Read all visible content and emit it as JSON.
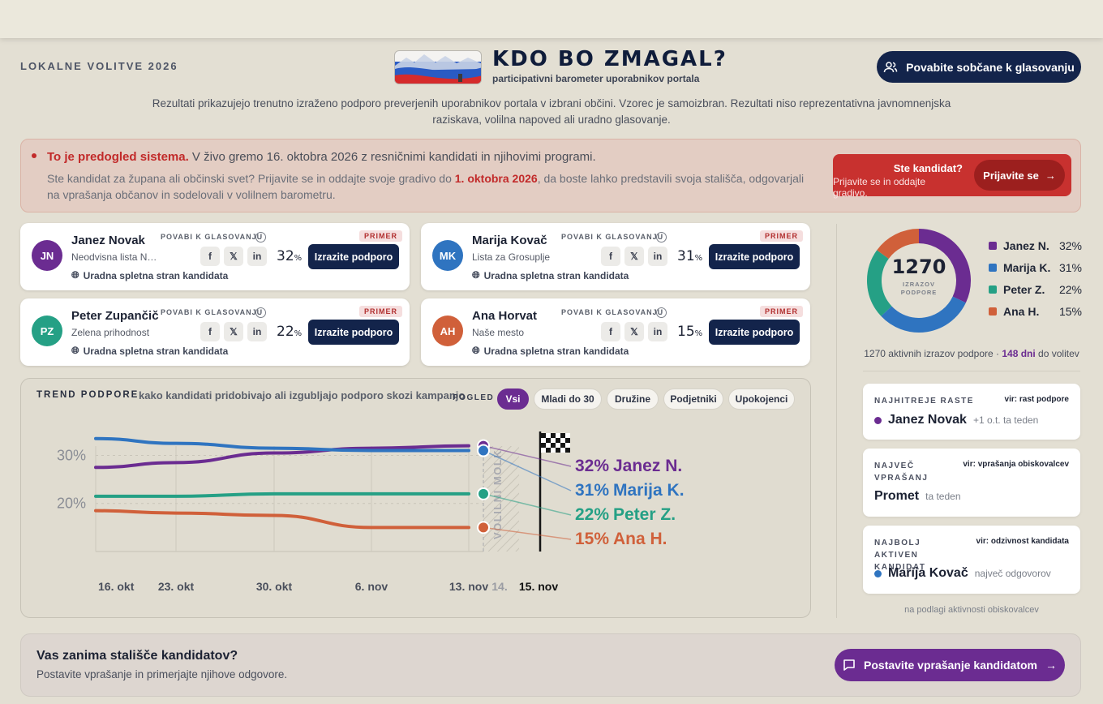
{
  "header": {
    "eyebrow": "LOKALNE VOLITVE 2026",
    "title": "KDO BO ZMAGAL?",
    "subtitle": "participativni barometer uporabnikov portala",
    "invite_label": "Povabite sobčane k glasovanju"
  },
  "disclaimer": "Rezultati prikazujejo trenutno izraženo podporo preverjenih uporabnikov portala v izbrani občini. Vzorec je samoizbran. Rezultati niso reprezentativna javnomnenjska raziskava, volilna napoved ali uradno glasovanje.",
  "alert": {
    "strong": "To je predogled sistema.",
    "text": " V živo gremo 16. oktobra 2026 z resničnimi kandidati in njihovimi programi.",
    "line2_pre": "Ste kandidat za župana ali občinski svet? Prijavite se in oddajte svoje gradivo do ",
    "line2_date": "1. oktobra 2026",
    "line2_post": ", da boste lahko predstavili svoja stališča, odgovarjali na vprašanja občanov in sodelovali v volilnem barometru.",
    "cta_title": "Ste kandidat?",
    "cta_sub": "Prijavite se in oddajte gradivo.",
    "cta_button": "Prijavite se",
    "cta_arrow": "→"
  },
  "candidate_common": {
    "vote_label": "POVABI K GLASOVANJU",
    "website": "Uradna spletna stran kandidata",
    "support_button": "Izrazite podporo",
    "badge": "PRIMER",
    "pct_sign": "%"
  },
  "candidates": [
    {
      "initials": "JN",
      "name": "Janez Novak",
      "party": "Neodvisna lista No...",
      "pct": "32",
      "color": "#6b2c91"
    },
    {
      "initials": "MK",
      "name": "Marija Kovač",
      "party": "Lista za Grosuplje",
      "pct": "31",
      "color": "#2f74c0"
    },
    {
      "initials": "PZ",
      "name": "Peter Zupančič",
      "party": "Zelena prihodnost",
      "pct": "22",
      "color": "#25a085"
    },
    {
      "initials": "AH",
      "name": "Ana Horvat",
      "party": "Naše mesto",
      "pct": "15",
      "color": "#d0603a"
    }
  ],
  "trend": {
    "title": "TREND PODPORE",
    "desc": "kako kandidati pridobivajo ali izgubljajo podporo skozi kampanjo",
    "view_label": "POGLED",
    "filters": [
      "Vsi",
      "Mladi do 30",
      "Družine",
      "Podjetniki",
      "Upokojenci"
    ],
    "active_filter": "Vsi",
    "silence_label": "VOLILNI MOLK"
  },
  "chart_data": {
    "type": "line",
    "x": [
      "16. okt",
      "23. okt",
      "30. okt",
      "6. nov",
      "13. nov"
    ],
    "extra_ticks": [
      "14.",
      "15. nov"
    ],
    "ylim": [
      10,
      37
    ],
    "yticks": [
      "30%",
      "20%"
    ],
    "series": [
      {
        "name": "Janez N.",
        "label_value": "32%",
        "color": "#6b2c91",
        "values": [
          27.5,
          28.5,
          30.5,
          31.5,
          32
        ]
      },
      {
        "name": "Marija K.",
        "label_value": "31%",
        "color": "#2f74c0",
        "values": [
          33.5,
          32.5,
          31.5,
          31,
          31
        ]
      },
      {
        "name": "Peter Z.",
        "label_value": "22%",
        "color": "#25a085",
        "values": [
          21.5,
          21.5,
          22,
          22,
          22
        ]
      },
      {
        "name": "Ana H.",
        "label_value": "15%",
        "color": "#d0603a",
        "values": [
          18.5,
          18,
          17.5,
          15,
          15
        ]
      }
    ]
  },
  "donut": {
    "total": "1270",
    "label": "IZRAZOV PODPORE",
    "shares": [
      {
        "name": "Janez N.",
        "value": 32,
        "display": "32%",
        "color": "#6b2c91"
      },
      {
        "name": "Marija K.",
        "value": 31,
        "display": "31%",
        "color": "#2f74c0"
      },
      {
        "name": "Peter Z.",
        "value": 22,
        "display": "22%",
        "color": "#25a085"
      },
      {
        "name": "Ana H.",
        "value": 15,
        "display": "15%",
        "color": "#d0603a"
      }
    ]
  },
  "summary": {
    "pre": "1270 aktivnih izrazov podpore · ",
    "days": "148 dni",
    "post": " do volitev"
  },
  "stats": [
    {
      "label": "NAJHITREJE RASTE",
      "source": "vir: rast podpore",
      "value": "Janez Novak",
      "note": "+1 o.t. ta teden",
      "dot": "#6b2c91"
    },
    {
      "label": "NAJVEČ VPRAŠANJ",
      "source": "vir: vprašanja obiskovalcev",
      "value": "Promet",
      "note": "ta teden",
      "dot": ""
    },
    {
      "label": "NAJBOLJ AKTIVEN KANDIDAT",
      "source": "vir: odzivnost kandidata",
      "value": "Marija Kovač",
      "note": "največ odgovorov",
      "dot": "#2f74c0"
    }
  ],
  "stats_footer": "na podlagi aktivnosti obiskovalcev",
  "bottom": {
    "title": "Vas zanima stališče kandidatov?",
    "sub": "Postavite vprašanje in primerjajte njihove odgovore.",
    "button": "Postavite vprašanje kandidatom",
    "arrow": "→"
  }
}
